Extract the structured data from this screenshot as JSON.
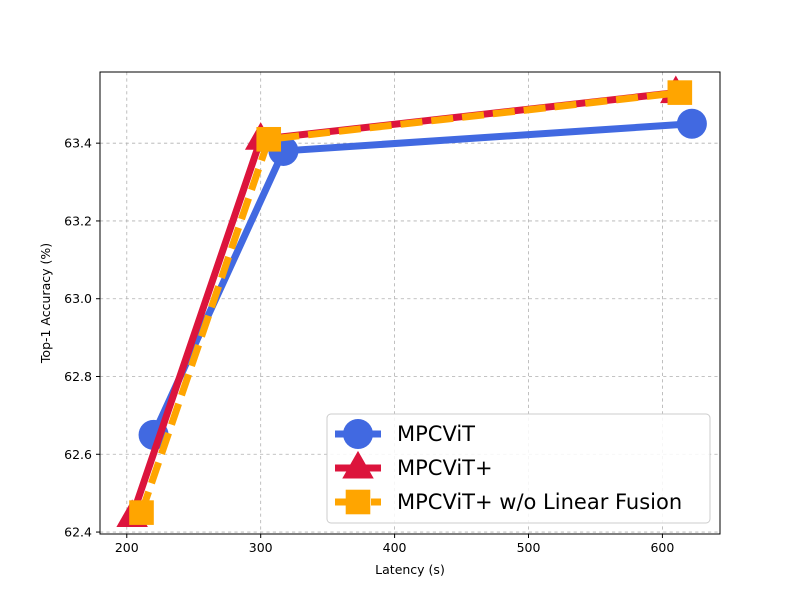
{
  "chart_data": {
    "type": "line",
    "title": "",
    "xlabel": "Latency (s)",
    "ylabel": "Top-1 Accuracy (%)",
    "xlim": [
      180,
      643
    ],
    "ylim": [
      62.395,
      63.583
    ],
    "x_ticks": [
      200,
      300,
      400,
      500,
      600
    ],
    "x_tick_labels": [
      "200",
      "300",
      "400",
      "500",
      "600"
    ],
    "y_ticks": [
      62.4,
      62.6,
      62.8,
      63.0,
      63.2,
      63.4
    ],
    "y_tick_labels": [
      "62.4",
      "62.6",
      "62.8",
      "63.0",
      "63.2",
      "63.4"
    ],
    "grid": true,
    "legend_position": "bottom-right",
    "series": [
      {
        "name": "MPCViT",
        "color": "#4169e1",
        "marker": "circle",
        "line_style": "solid",
        "x": [
          220,
          317,
          622
        ],
        "y": [
          62.65,
          63.38,
          63.45
        ]
      },
      {
        "name": "MPCViT+",
        "color": "#dc143c",
        "marker": "triangle",
        "line_style": "solid",
        "x": [
          204,
          300,
          610
        ],
        "y": [
          62.44,
          63.41,
          63.53
        ]
      },
      {
        "name": "MPCViT+ w/o Linear Fusion",
        "color": "#ffa500",
        "marker": "square",
        "line_style": "dashed",
        "x": [
          211,
          306,
          613
        ],
        "y": [
          62.45,
          63.41,
          63.53
        ]
      }
    ]
  }
}
